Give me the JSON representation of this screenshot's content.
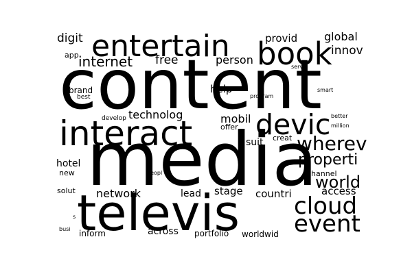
{
  "cloud": {
    "background": "#ffffff",
    "word_color": "#000000",
    "words": [
      {
        "text": "content"
      },
      {
        "text": "media"
      },
      {
        "text": "televis"
      },
      {
        "text": "interact"
      },
      {
        "text": "entertain"
      },
      {
        "text": "book"
      },
      {
        "text": "devic"
      },
      {
        "text": "cloud"
      },
      {
        "text": "event"
      },
      {
        "text": "wherev"
      },
      {
        "text": "properti"
      },
      {
        "text": "world"
      },
      {
        "text": "internet"
      },
      {
        "text": "digit"
      },
      {
        "text": "free"
      },
      {
        "text": "person"
      },
      {
        "text": "provid"
      },
      {
        "text": "global"
      },
      {
        "text": "innov"
      },
      {
        "text": "technolog"
      },
      {
        "text": "mobil"
      },
      {
        "text": "help"
      },
      {
        "text": "brand"
      },
      {
        "text": "network"
      },
      {
        "text": "stage"
      },
      {
        "text": "countri"
      },
      {
        "text": "access"
      },
      {
        "text": "hotel"
      },
      {
        "text": "suit"
      },
      {
        "text": "lead"
      },
      {
        "text": "across"
      },
      {
        "text": "inform"
      },
      {
        "text": "portfolio"
      },
      {
        "text": "worldwid"
      },
      {
        "text": "app"
      },
      {
        "text": "best"
      },
      {
        "text": "develop"
      },
      {
        "text": "offer"
      },
      {
        "text": "creat"
      },
      {
        "text": "servic"
      },
      {
        "text": "smart"
      },
      {
        "text": "program"
      },
      {
        "text": "better"
      },
      {
        "text": "million"
      },
      {
        "text": "channel"
      },
      {
        "text": "new"
      },
      {
        "text": "solut"
      },
      {
        "text": "peopl"
      },
      {
        "text": "busi"
      },
      {
        "text": "s"
      }
    ]
  }
}
